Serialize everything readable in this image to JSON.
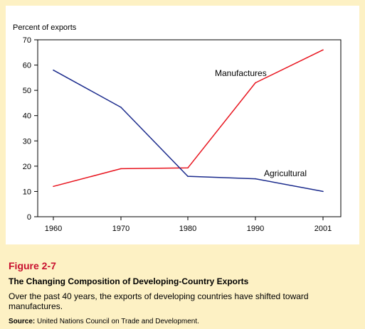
{
  "figure": {
    "number": "Figure 2-7",
    "title": "The Changing Composition of Developing-Country Exports",
    "description": "Over the past 40 years, the exports of developing countries have shifted toward manufactures.",
    "source_label": "Source:",
    "source_text": " United Nations Council on Trade and Development."
  },
  "chart_data": {
    "type": "line",
    "title": "",
    "xlabel": "",
    "ylabel": "Percent of exports",
    "categories": [
      "1960",
      "1970",
      "1980",
      "1990",
      "2001"
    ],
    "ylim": [
      0,
      70
    ],
    "yticks": [
      0,
      10,
      20,
      30,
      40,
      50,
      60,
      70
    ],
    "grid": false,
    "legend": "none",
    "series": [
      {
        "name": "Manufactures",
        "color": "#e8141e",
        "values": [
          12,
          19,
          19.3,
          53,
          66
        ]
      },
      {
        "name": "Agricultural",
        "color": "#1a2a8c",
        "values": [
          58,
          43.3,
          16,
          15,
          10
        ]
      }
    ]
  },
  "colors": {
    "background": "#fdf1c4",
    "panel": "#ffffff",
    "accent": "#c8102e"
  }
}
